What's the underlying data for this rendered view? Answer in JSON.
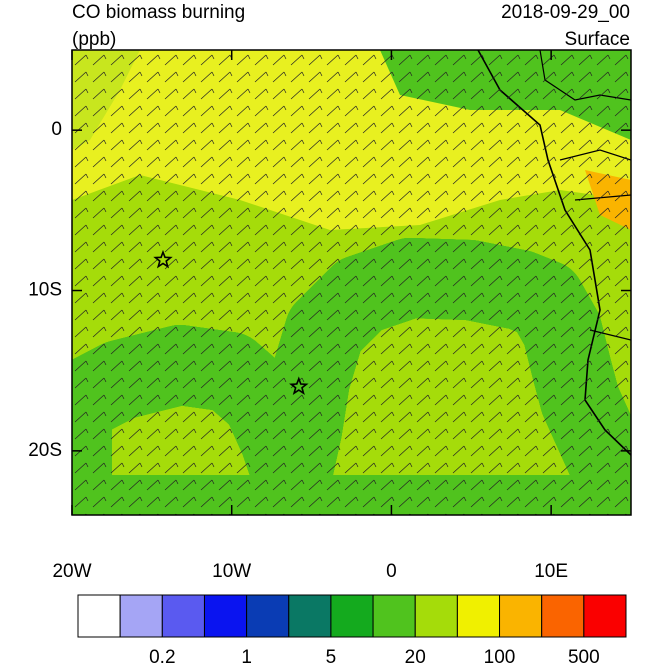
{
  "header": {
    "title": "CO biomass burning",
    "units": "(ppb)",
    "date": "2018-09-29_00",
    "level": "Surface"
  },
  "map": {
    "xlim": [
      -20,
      15
    ],
    "ylim": [
      -24,
      5
    ],
    "xticks": [
      {
        "value": -20,
        "label": "20W"
      },
      {
        "value": -10,
        "label": "10W"
      },
      0,
      {
        "value": 10,
        "label": "10E"
      }
    ],
    "yticks": [
      0,
      {
        "value": -10,
        "label": "10S"
      },
      {
        "value": -20,
        "label": "20S"
      }
    ],
    "markers": [
      {
        "lon": -14.3,
        "lat": -8.1
      },
      {
        "lon": -5.8,
        "lat": -16
      }
    ]
  },
  "colorbar": {
    "colors": [
      "#ffffff",
      "#a5a5f5",
      "#5a5af0",
      "#0a14f0",
      "#0a3cb4",
      "#0a7864",
      "#14aa1e",
      "#50c31e",
      "#a5dc0a",
      "#f0f000",
      "#fab400",
      "#fa6400",
      "#fa0000"
    ],
    "labels": [
      0.2,
      1,
      5,
      20,
      100,
      500
    ]
  }
}
